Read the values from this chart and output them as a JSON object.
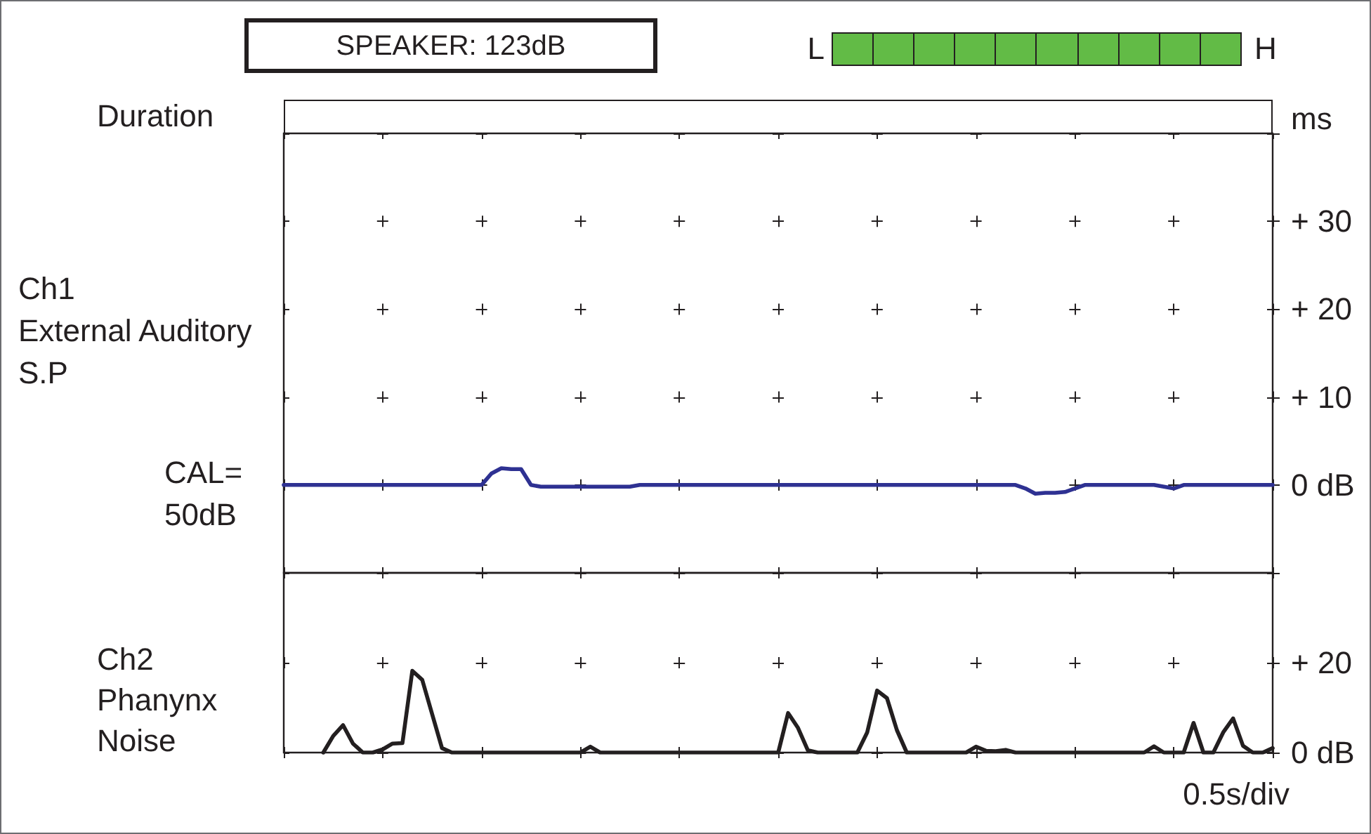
{
  "chart_data": [
    {
      "type": "other",
      "title": "SPEAKER: 123dB",
      "ylabel": "Duration",
      "annotations": [
        "L",
        "H",
        "ms"
      ]
    },
    {
      "type": "line",
      "ylabel": "Ch1\nExternal Auditory\nS.P",
      "annotations": [
        "CAL=\n50dB"
      ],
      "color": "#2e3192",
      "categories": [
        null,
        null,
        null,
        null,
        null,
        null,
        null,
        null,
        null,
        null,
        null,
        null,
        null,
        null,
        null,
        null,
        null,
        null,
        null,
        null,
        null,
        null,
        null,
        null,
        null,
        null,
        null,
        null,
        null,
        null,
        null,
        null,
        null,
        null,
        null,
        null,
        null,
        null,
        null,
        null,
        null,
        null,
        null,
        null,
        null,
        null,
        null,
        null,
        null,
        null,
        null,
        null,
        null,
        null,
        null,
        null,
        null,
        null,
        null,
        null,
        null,
        null,
        null,
        null,
        null,
        null,
        null,
        null,
        null,
        null,
        null,
        null,
        null,
        null,
        null,
        null,
        null,
        null,
        null,
        null,
        null,
        null,
        null,
        null,
        null,
        null,
        null,
        null,
        null,
        null,
        null,
        null,
        null,
        null,
        null,
        null,
        null,
        null,
        null,
        null,
        null
      ],
      "values": [
        0,
        0,
        0,
        0,
        0,
        0,
        0,
        0,
        0,
        0,
        0,
        0,
        0,
        0,
        0,
        0,
        0,
        0,
        0,
        0,
        0,
        1.3,
        1.9,
        1.8,
        1.8,
        0,
        -0.2,
        -0.2,
        -0.2,
        -0.2,
        -0.2,
        -0.2,
        -0.2,
        -0.2,
        -0.2,
        -0.2,
        0,
        0,
        0,
        0,
        0,
        0,
        0,
        0,
        0,
        0,
        0,
        0,
        0,
        0,
        0,
        0,
        0,
        0,
        0,
        0,
        0,
        0,
        0,
        0,
        0,
        0,
        0,
        0,
        0,
        0,
        0,
        0,
        0,
        0,
        0,
        0,
        0,
        0,
        0,
        -0.4,
        -1,
        -0.9,
        -0.9,
        -0.8,
        -0.4,
        0,
        0,
        0,
        0,
        0,
        0,
        0,
        0,
        -0.2,
        -0.4,
        0,
        0,
        0,
        0,
        0,
        0,
        0,
        0,
        0,
        0
      ],
      "ylim": [
        -10,
        40
      ],
      "yticks": [
        {
          "value": -10,
          "label": null
        },
        {
          "value": 0,
          "label": "0 dB"
        },
        {
          "value": 10,
          "label": "+ 10"
        },
        {
          "value": 20,
          "label": "+ 20"
        },
        {
          "value": 30,
          "label": "+ 30"
        },
        {
          "value": 40,
          "label": null
        }
      ],
      "grid": true,
      "tick_labels": "y"
    },
    {
      "type": "line",
      "ylabel": "Ch2\nPhanynx\nNoise",
      "xlabel": "0.5s/div",
      "color": "#231f20",
      "categories": [
        null,
        null,
        null,
        null,
        null,
        null,
        null,
        null,
        null,
        null,
        null,
        null,
        null,
        null,
        null,
        null,
        null,
        null,
        null,
        null,
        null,
        null,
        null,
        null,
        null,
        null,
        null,
        null,
        null,
        null,
        null,
        null,
        null,
        null,
        null,
        null,
        null,
        null,
        null,
        null,
        null,
        null,
        null,
        null,
        null,
        null,
        null,
        null,
        null,
        null,
        null,
        null,
        null,
        null,
        null,
        null,
        null,
        null,
        null,
        null,
        null,
        null,
        null,
        null,
        null,
        null,
        null,
        null,
        null,
        null,
        null,
        null,
        null,
        null,
        null,
        null,
        null,
        null,
        null,
        null,
        null,
        null,
        null,
        null,
        null,
        null,
        null,
        null,
        null,
        null,
        null,
        null,
        null,
        null,
        null,
        null,
        null,
        null,
        null,
        null,
        null
      ],
      "values": [
        null,
        null,
        null,
        null,
        0,
        3.7,
        6.1,
        2,
        0,
        0,
        0.7,
        2,
        2.1,
        18.2,
        16.2,
        8.6,
        1,
        0,
        0,
        0,
        0,
        0,
        0,
        0,
        0,
        0,
        0,
        0,
        0,
        0,
        0,
        1.3,
        0,
        0,
        0,
        0,
        0,
        0,
        0,
        0,
        0,
        0,
        0,
        0,
        0,
        0,
        0,
        0,
        0,
        0,
        0,
        8.8,
        5.5,
        0.5,
        0,
        0,
        0,
        0,
        0,
        4.5,
        13.8,
        12.1,
        5,
        0,
        0,
        0,
        0,
        0,
        0,
        0,
        1.3,
        0.4,
        0.3,
        0.6,
        0,
        0,
        0,
        0,
        0,
        0,
        0,
        0,
        0,
        0,
        0,
        0,
        0,
        0,
        1.4,
        0,
        0,
        0,
        6.6,
        0,
        0,
        4.5,
        7.6,
        1.5,
        0,
        0,
        1
      ],
      "ylim": [
        0,
        40
      ],
      "yticks": [
        {
          "value": 0,
          "label": "0 dB"
        },
        {
          "value": 20,
          "label": "+ 20"
        },
        {
          "value": 40,
          "label": null
        }
      ],
      "grid": true,
      "tick_labels": "y"
    }
  ]
}
